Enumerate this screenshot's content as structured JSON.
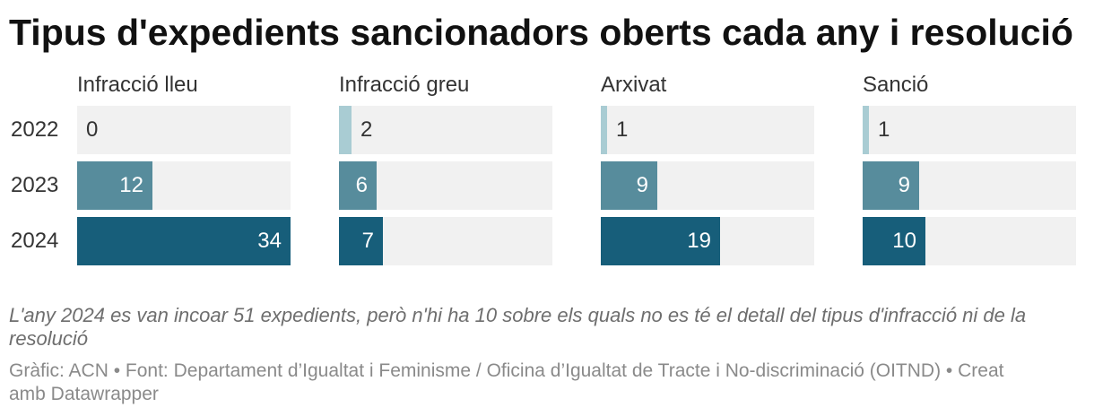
{
  "notes": "L'any 2024 es van incoar 51 expedients, però n'hi ha 10 sobre els quals no es té el detall del tipus d'infracció ni de la resolució",
  "footer": {
    "byline": "Gràfic: ACN",
    "separator": "•",
    "source": "Font: Departament d’Igualtat i Feminisme / Oficina d’Igualtat de Tracte i No-discriminació (OITND)",
    "credit": "Creat amb Datawrapper"
  },
  "chart_data": {
    "type": "bar",
    "title": "Tipus d'expedients sancionadors oberts cada any i resolució",
    "categories": [
      "2022",
      "2023",
      "2024"
    ],
    "series": [
      {
        "name": "Infracció lleu",
        "values": [
          0,
          12,
          34
        ]
      },
      {
        "name": "Infracció greu",
        "values": [
          2,
          6,
          7
        ]
      },
      {
        "name": "Arxivat",
        "values": [
          1,
          9,
          19
        ]
      },
      {
        "name": "Sanció",
        "values": [
          1,
          9,
          10
        ]
      }
    ],
    "xlim": [
      0,
      34
    ],
    "grid": false,
    "category_colors": [
      "#a9ccd3",
      "#578c9c",
      "#175e7a"
    ]
  }
}
